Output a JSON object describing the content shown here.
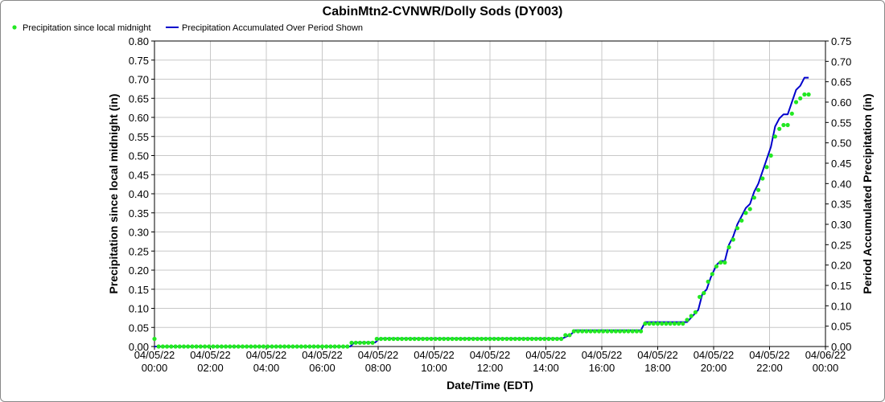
{
  "chart_data": {
    "type": "line",
    "title": "CabinMtn2-CVNWR/Dolly Sods (DY003)",
    "xlabel": "Date/Time (EDT)",
    "ylabel_left": "Precipitation since local midnight (in)",
    "ylabel_right": "Period Accumulated Precipitation (in)",
    "ylim_left": [
      0,
      0.8
    ],
    "ylim_right": [
      0,
      0.75
    ],
    "yticks_left": [
      "0.00",
      "0.05",
      "0.10",
      "0.15",
      "0.20",
      "0.25",
      "0.30",
      "0.35",
      "0.40",
      "0.45",
      "0.50",
      "0.55",
      "0.60",
      "0.65",
      "0.70",
      "0.75",
      "0.80"
    ],
    "yticks_right": [
      "0.00",
      "0.05",
      "0.10",
      "0.15",
      "0.20",
      "0.25",
      "0.30",
      "0.35",
      "0.40",
      "0.45",
      "0.50",
      "0.55",
      "0.60",
      "0.65",
      "0.70",
      "0.75"
    ],
    "xlim_hours": [
      0,
      24
    ],
    "xticks": [
      {
        "hour": 0,
        "date": "04/05/22",
        "time": "00:00"
      },
      {
        "hour": 2,
        "date": "04/05/22",
        "time": "02:00"
      },
      {
        "hour": 4,
        "date": "04/05/22",
        "time": "04:00"
      },
      {
        "hour": 6,
        "date": "04/05/22",
        "time": "06:00"
      },
      {
        "hour": 8,
        "date": "04/05/22",
        "time": "08:00"
      },
      {
        "hour": 10,
        "date": "04/05/22",
        "time": "10:00"
      },
      {
        "hour": 12,
        "date": "04/05/22",
        "time": "12:00"
      },
      {
        "hour": 14,
        "date": "04/05/22",
        "time": "14:00"
      },
      {
        "hour": 16,
        "date": "04/05/22",
        "time": "16:00"
      },
      {
        "hour": 18,
        "date": "04/05/22",
        "time": "18:00"
      },
      {
        "hour": 20,
        "date": "04/05/22",
        "time": "20:00"
      },
      {
        "hour": 22,
        "date": "04/05/22",
        "time": "22:00"
      },
      {
        "hour": 24,
        "date": "04/06/22",
        "time": "00:00"
      }
    ],
    "grid": true,
    "legend_position": "top-left",
    "series": [
      {
        "name": "Precipitation since local midnight",
        "style": "points",
        "axis": "left",
        "color": "#22e822",
        "points": [
          [
            0,
            0.02
          ],
          [
            0.15,
            0
          ],
          [
            0.3,
            0
          ],
          [
            0.45,
            0
          ],
          [
            0.6,
            0
          ],
          [
            0.75,
            0
          ],
          [
            0.9,
            0
          ],
          [
            1.05,
            0
          ],
          [
            1.2,
            0
          ],
          [
            1.35,
            0
          ],
          [
            1.5,
            0
          ],
          [
            1.65,
            0
          ],
          [
            1.8,
            0
          ],
          [
            1.95,
            0
          ],
          [
            2.1,
            0
          ],
          [
            2.25,
            0
          ],
          [
            2.4,
            0
          ],
          [
            2.55,
            0
          ],
          [
            2.7,
            0
          ],
          [
            2.85,
            0
          ],
          [
            3,
            0
          ],
          [
            3.15,
            0
          ],
          [
            3.3,
            0
          ],
          [
            3.45,
            0
          ],
          [
            3.6,
            0
          ],
          [
            3.75,
            0
          ],
          [
            3.9,
            0
          ],
          [
            4.05,
            0
          ],
          [
            4.2,
            0
          ],
          [
            4.35,
            0
          ],
          [
            4.5,
            0
          ],
          [
            4.65,
            0
          ],
          [
            4.8,
            0
          ],
          [
            4.95,
            0
          ],
          [
            5.1,
            0
          ],
          [
            5.25,
            0
          ],
          [
            5.4,
            0
          ],
          [
            5.55,
            0
          ],
          [
            5.7,
            0
          ],
          [
            5.85,
            0
          ],
          [
            6,
            0
          ],
          [
            6.15,
            0
          ],
          [
            6.3,
            0
          ],
          [
            6.45,
            0
          ],
          [
            6.6,
            0
          ],
          [
            6.75,
            0
          ],
          [
            6.9,
            0
          ],
          [
            7.05,
            0.01
          ],
          [
            7.2,
            0.01
          ],
          [
            7.35,
            0.01
          ],
          [
            7.5,
            0.01
          ],
          [
            7.65,
            0.01
          ],
          [
            7.8,
            0.01
          ],
          [
            7.95,
            0.02
          ],
          [
            8.1,
            0.02
          ],
          [
            8.25,
            0.02
          ],
          [
            8.4,
            0.02
          ],
          [
            8.55,
            0.02
          ],
          [
            8.7,
            0.02
          ],
          [
            8.85,
            0.02
          ],
          [
            9,
            0.02
          ],
          [
            9.15,
            0.02
          ],
          [
            9.3,
            0.02
          ],
          [
            9.45,
            0.02
          ],
          [
            9.6,
            0.02
          ],
          [
            9.75,
            0.02
          ],
          [
            9.9,
            0.02
          ],
          [
            10.05,
            0.02
          ],
          [
            10.2,
            0.02
          ],
          [
            10.35,
            0.02
          ],
          [
            10.5,
            0.02
          ],
          [
            10.65,
            0.02
          ],
          [
            10.8,
            0.02
          ],
          [
            10.95,
            0.02
          ],
          [
            11.1,
            0.02
          ],
          [
            11.25,
            0.02
          ],
          [
            11.4,
            0.02
          ],
          [
            11.55,
            0.02
          ],
          [
            11.7,
            0.02
          ],
          [
            11.85,
            0.02
          ],
          [
            12,
            0.02
          ],
          [
            12.15,
            0.02
          ],
          [
            12.3,
            0.02
          ],
          [
            12.45,
            0.02
          ],
          [
            12.6,
            0.02
          ],
          [
            12.75,
            0.02
          ],
          [
            12.9,
            0.02
          ],
          [
            13.05,
            0.02
          ],
          [
            13.2,
            0.02
          ],
          [
            13.35,
            0.02
          ],
          [
            13.5,
            0.02
          ],
          [
            13.65,
            0.02
          ],
          [
            13.8,
            0.02
          ],
          [
            13.95,
            0.02
          ],
          [
            14.1,
            0.02
          ],
          [
            14.25,
            0.02
          ],
          [
            14.4,
            0.02
          ],
          [
            14.55,
            0.02
          ],
          [
            14.7,
            0.03
          ],
          [
            14.85,
            0.03
          ],
          [
            15,
            0.04
          ],
          [
            15.15,
            0.04
          ],
          [
            15.3,
            0.04
          ],
          [
            15.45,
            0.04
          ],
          [
            15.6,
            0.04
          ],
          [
            15.75,
            0.04
          ],
          [
            15.9,
            0.04
          ],
          [
            16.05,
            0.04
          ],
          [
            16.2,
            0.04
          ],
          [
            16.35,
            0.04
          ],
          [
            16.5,
            0.04
          ],
          [
            16.65,
            0.04
          ],
          [
            16.8,
            0.04
          ],
          [
            16.95,
            0.04
          ],
          [
            17.1,
            0.04
          ],
          [
            17.25,
            0.04
          ],
          [
            17.4,
            0.04
          ],
          [
            17.55,
            0.06
          ],
          [
            17.7,
            0.06
          ],
          [
            17.85,
            0.06
          ],
          [
            18,
            0.06
          ],
          [
            18.15,
            0.06
          ],
          [
            18.3,
            0.06
          ],
          [
            18.45,
            0.06
          ],
          [
            18.6,
            0.06
          ],
          [
            18.75,
            0.06
          ],
          [
            18.9,
            0.06
          ],
          [
            19.05,
            0.07
          ],
          [
            19.2,
            0.08
          ],
          [
            19.35,
            0.09
          ],
          [
            19.5,
            0.13
          ],
          [
            19.65,
            0.14
          ],
          [
            19.8,
            0.17
          ],
          [
            19.95,
            0.19
          ],
          [
            20.1,
            0.21
          ],
          [
            20.25,
            0.22
          ],
          [
            20.4,
            0.22
          ],
          [
            20.55,
            0.26
          ],
          [
            20.7,
            0.28
          ],
          [
            20.85,
            0.31
          ],
          [
            21,
            0.33
          ],
          [
            21.15,
            0.35
          ],
          [
            21.3,
            0.36
          ],
          [
            21.45,
            0.39
          ],
          [
            21.6,
            0.41
          ],
          [
            21.75,
            0.44
          ],
          [
            21.9,
            0.47
          ],
          [
            22.05,
            0.5
          ],
          [
            22.2,
            0.55
          ],
          [
            22.35,
            0.57
          ],
          [
            22.5,
            0.58
          ],
          [
            22.65,
            0.58
          ],
          [
            22.8,
            0.61
          ],
          [
            22.95,
            0.64
          ],
          [
            23.1,
            0.65
          ],
          [
            23.25,
            0.66
          ],
          [
            23.4,
            0.66
          ]
        ]
      },
      {
        "name": "Precipitation Accumulated Over Period Shown",
        "style": "line",
        "axis": "right",
        "color": "#0000cc",
        "points": [
          [
            0,
            0
          ],
          [
            7,
            0
          ],
          [
            7.15,
            0.01
          ],
          [
            7.9,
            0.01
          ],
          [
            8.05,
            0.02
          ],
          [
            14.6,
            0.02
          ],
          [
            14.9,
            0.03
          ],
          [
            15.05,
            0.04
          ],
          [
            17.4,
            0.04
          ],
          [
            17.55,
            0.06
          ],
          [
            19.05,
            0.06
          ],
          [
            19.45,
            0.09
          ],
          [
            19.6,
            0.13
          ],
          [
            19.75,
            0.14
          ],
          [
            19.9,
            0.17
          ],
          [
            20.1,
            0.2
          ],
          [
            20.25,
            0.21
          ],
          [
            20.4,
            0.21
          ],
          [
            20.55,
            0.25
          ],
          [
            20.7,
            0.27
          ],
          [
            20.85,
            0.3
          ],
          [
            21,
            0.32
          ],
          [
            21.15,
            0.34
          ],
          [
            21.3,
            0.35
          ],
          [
            21.45,
            0.38
          ],
          [
            21.6,
            0.4
          ],
          [
            21.75,
            0.43
          ],
          [
            21.9,
            0.46
          ],
          [
            22.05,
            0.49
          ],
          [
            22.2,
            0.54
          ],
          [
            22.35,
            0.56
          ],
          [
            22.5,
            0.57
          ],
          [
            22.65,
            0.57
          ],
          [
            22.8,
            0.6
          ],
          [
            22.95,
            0.63
          ],
          [
            23.1,
            0.64
          ],
          [
            23.25,
            0.66
          ],
          [
            23.4,
            0.66
          ]
        ]
      }
    ]
  }
}
